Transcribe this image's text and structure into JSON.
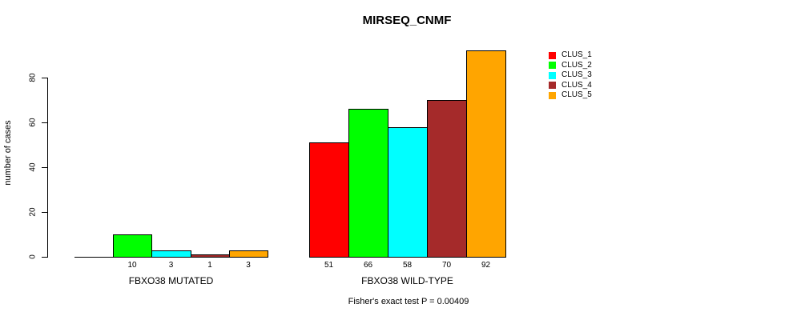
{
  "chart_data": {
    "type": "bar",
    "title": "MIRSEQ_CNMF",
    "xlabel": "",
    "ylabel": "number of cases",
    "ylim": [
      0,
      95
    ],
    "yticks": [
      0,
      20,
      40,
      60,
      80
    ],
    "grid": false,
    "legend_position": "right-outside",
    "categories": [
      "FBXO38 MUTATED",
      "FBXO38 WILD-TYPE"
    ],
    "series": [
      {
        "name": "CLUS_1",
        "color": "#ff0000",
        "values": [
          0,
          51
        ]
      },
      {
        "name": "CLUS_2",
        "color": "#00ff00",
        "values": [
          10,
          66
        ]
      },
      {
        "name": "CLUS_3",
        "color": "#00ffff",
        "values": [
          3,
          58
        ]
      },
      {
        "name": "CLUS_4",
        "color": "#a52a2a",
        "values": [
          1,
          70
        ]
      },
      {
        "name": "CLUS_5",
        "color": "#ffa500",
        "values": [
          3,
          92
        ]
      }
    ],
    "bar_value_labels": true,
    "zero_value_labels_hidden": true,
    "annotation": "Fisher's exact test P = 0.00409"
  },
  "colors": {
    "background": "#ffffff",
    "axis": "#000000",
    "text": "#000000"
  }
}
